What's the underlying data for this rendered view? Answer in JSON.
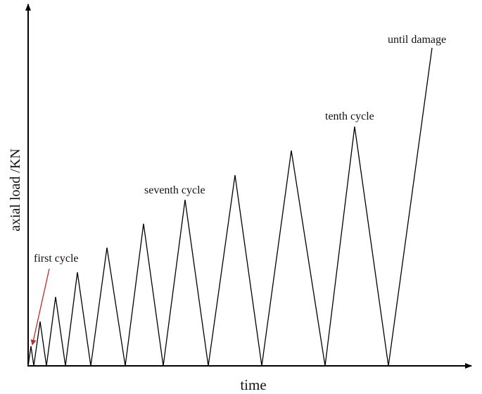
{
  "axes": {
    "y_label": "axial load /KN",
    "x_label": "time"
  },
  "annotations": {
    "first": "first cycle",
    "seventh": "seventh cycle",
    "tenth": "tenth cycle",
    "final": "until damage"
  }
}
